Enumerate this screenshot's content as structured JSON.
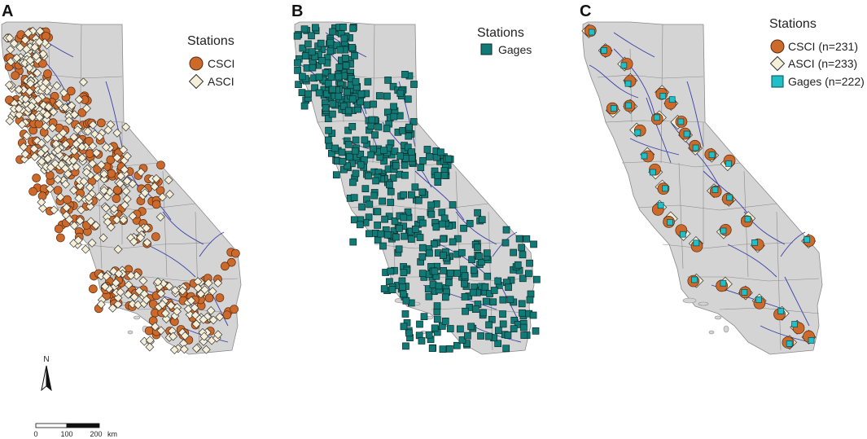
{
  "panels": [
    {
      "label": "A",
      "legend_title": "Stations",
      "legend": [
        {
          "symbol": "circle",
          "color": "#cc6a2c",
          "text": "CSCI"
        },
        {
          "symbol": "diamond",
          "color": "#f5efd9",
          "text": "ASCI"
        }
      ]
    },
    {
      "label": "B",
      "legend_title": "Stations",
      "legend": [
        {
          "symbol": "square",
          "color": "#117a76",
          "text": "Gages"
        }
      ]
    },
    {
      "label": "C",
      "legend_title": "Stations",
      "legend": [
        {
          "symbol": "circle",
          "color": "#cc6a2c",
          "text": "CSCI (n=231)"
        },
        {
          "symbol": "diamond",
          "color": "#f5efd9",
          "text": "ASCI (n=233)"
        },
        {
          "symbol": "square",
          "color": "#1fc0c8",
          "text": "Gages (n=222)"
        }
      ]
    }
  ],
  "north_arrow": {
    "label": "N"
  },
  "scale_bar": {
    "ticks": [
      "0",
      "100",
      "200"
    ],
    "unit": "km"
  },
  "colors": {
    "land": "#d4d4d4",
    "boundary": "#8a8a8a",
    "river": "#3a3fa8",
    "csci": "#cc6a2c",
    "asci": "#f5efd9",
    "gage_b": "#117a76",
    "gage_c": "#1fc0c8"
  }
}
